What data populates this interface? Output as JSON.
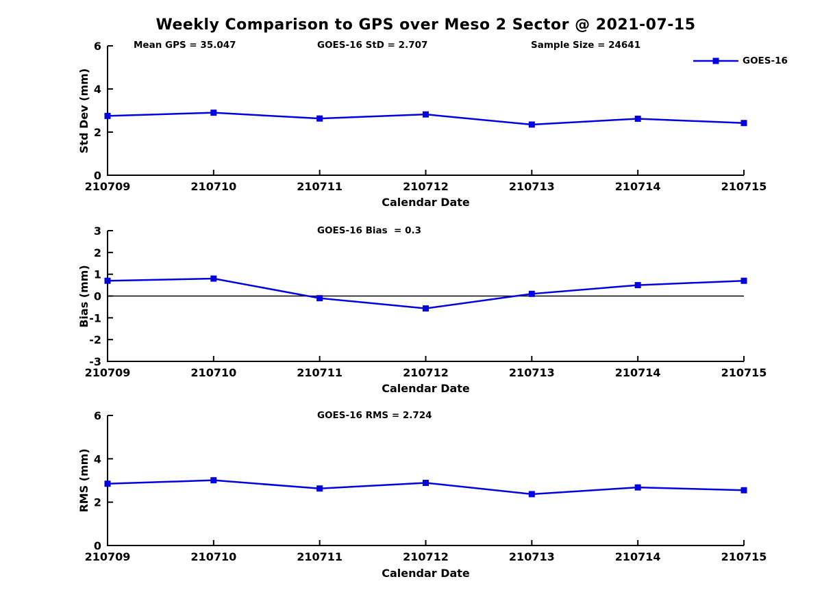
{
  "title": "Weekly Comparison to GPS over Meso 2 Sector @ 2021-07-15",
  "colors": {
    "series": "#0000E0",
    "axis": "#000000",
    "zero_line": "#000000",
    "background": "#FFFFFF",
    "text": "#000000"
  },
  "legend": {
    "label": "GOES-16",
    "position": "top-right"
  },
  "chart_data": [
    {
      "type": "line",
      "name": "std-dev-vs-date",
      "categories": [
        "210709",
        "210710",
        "210711",
        "210712",
        "210713",
        "210714",
        "210715"
      ],
      "series": [
        {
          "name": "GOES-16",
          "values": [
            2.75,
            2.9,
            2.63,
            2.82,
            2.35,
            2.62,
            2.42
          ]
        }
      ],
      "ylabel": "Std Dev (mm)",
      "xlabel": "Calendar Date",
      "ylim": [
        0,
        6
      ],
      "yticks": [
        0,
        2,
        4,
        6
      ],
      "zero_line": false,
      "grid": false,
      "marker": "square",
      "annotations": [
        "Mean GPS = 35.047",
        "GOES-16 StD = 2.707",
        "Sample Size = 24641"
      ]
    },
    {
      "type": "line",
      "name": "bias-vs-date",
      "categories": [
        "210709",
        "210710",
        "210711",
        "210712",
        "210713",
        "210714",
        "210715"
      ],
      "series": [
        {
          "name": "GOES-16",
          "values": [
            0.7,
            0.8,
            -0.1,
            -0.57,
            0.1,
            0.5,
            0.7
          ]
        }
      ],
      "ylabel": "Bias (mm)",
      "xlabel": "Calendar Date",
      "ylim": [
        -3,
        3
      ],
      "yticks": [
        -3,
        -2,
        -1,
        0,
        1,
        2,
        3
      ],
      "zero_line": true,
      "grid": false,
      "marker": "square",
      "annotations": [
        "GOES-16 Bias  = 0.3"
      ]
    },
    {
      "type": "line",
      "name": "rms-vs-date",
      "categories": [
        "210709",
        "210710",
        "210711",
        "210712",
        "210713",
        "210714",
        "210715"
      ],
      "series": [
        {
          "name": "GOES-16",
          "values": [
            2.85,
            3.01,
            2.63,
            2.89,
            2.37,
            2.68,
            2.55
          ]
        }
      ],
      "ylabel": "RMS (mm)",
      "xlabel": "Calendar Date",
      "ylim": [
        0,
        6
      ],
      "yticks": [
        0,
        2,
        4,
        6
      ],
      "zero_line": false,
      "grid": false,
      "marker": "square",
      "annotations": [
        "GOES-16 RMS = 2.724"
      ]
    }
  ]
}
